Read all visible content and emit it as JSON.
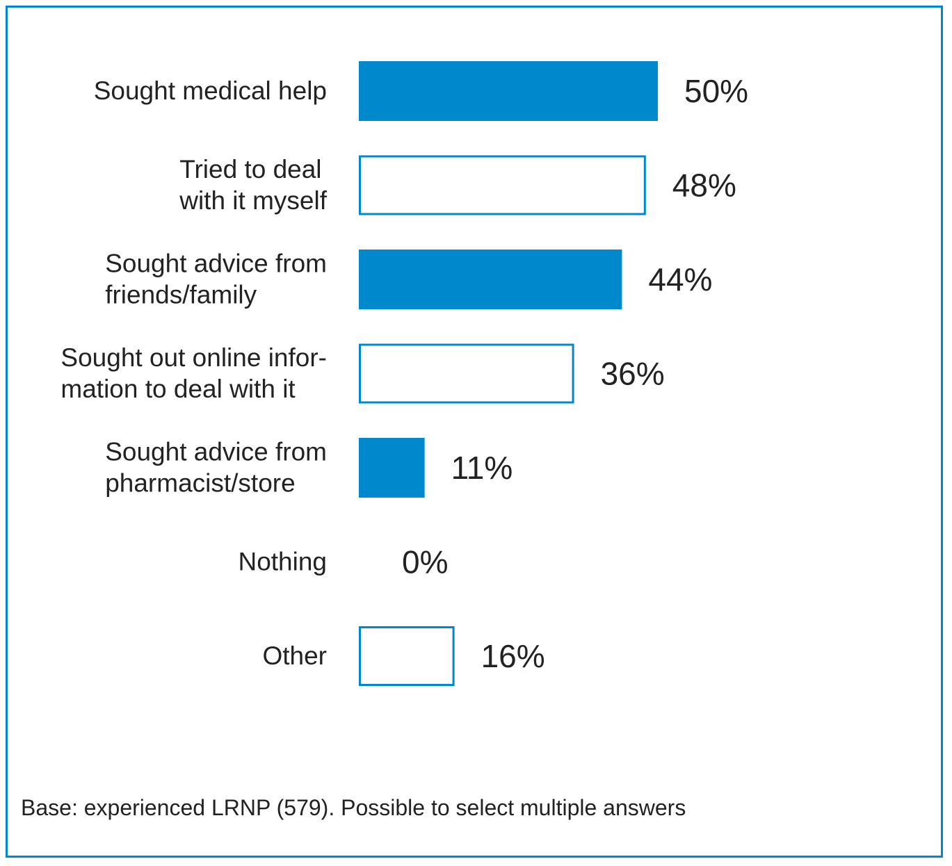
{
  "chart_data": {
    "type": "bar",
    "orientation": "horizontal",
    "categories": [
      [
        "Sought medical help"
      ],
      [
        "Tried to deal",
        "with it myself"
      ],
      [
        "Sought advice from",
        "friends/family"
      ],
      [
        "Sought out online infor-",
        "mation to deal with it"
      ],
      [
        "Sought advice from",
        "pharmacist/store"
      ],
      [
        "Nothing"
      ],
      [
        "Other"
      ]
    ],
    "values": [
      50,
      48,
      44,
      36,
      11,
      0,
      16
    ],
    "value_labels": [
      "50%",
      "48%",
      "44%",
      "36%",
      "11%",
      "0%",
      "16%"
    ],
    "bar_styles": [
      "filled",
      "outline",
      "filled",
      "outline",
      "filled",
      "outline",
      "outline"
    ],
    "color": "#0088cc",
    "xlim": [
      0,
      100
    ],
    "grid": false,
    "legend": "none"
  },
  "footnote": "Base: experienced LRNP (579). Possible to select multiple answers"
}
